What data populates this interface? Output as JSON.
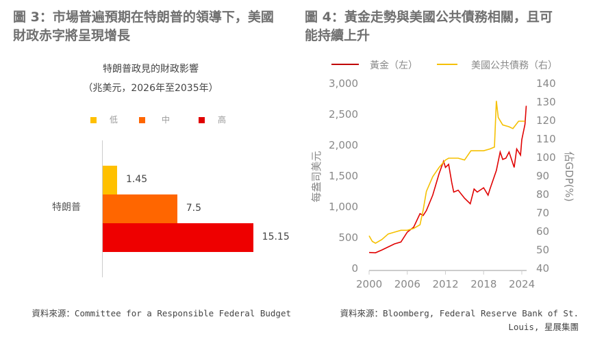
{
  "left": {
    "title_line1": "圖 3：市場普遍預期在特朗普的領導下，美國",
    "title_line2": "財政赤字將呈現增長",
    "source": "資料來源：Committee for a Responsible Federal Budget"
  },
  "right": {
    "title_line1": "圖 4：黃金走勢與美國公共債務相關，且可",
    "title_line2": "能持續上升",
    "source_line1": "資料來源：Bloomberg, Federal Reserve Bank of St.",
    "source_line2": "Louis, 星展集團"
  },
  "chart_data": [
    {
      "type": "bar",
      "orientation": "horizontal",
      "title": "特朗普政見的財政影響",
      "subtitle": "（兆美元，2026年至2035年）",
      "categories": [
        "特朗普"
      ],
      "series": [
        {
          "name": "低",
          "color": "#FFC000",
          "values": [
            1.45
          ],
          "label": "1.45"
        },
        {
          "name": "中",
          "color": "#FF6600",
          "values": [
            7.5
          ],
          "label": "7.5"
        },
        {
          "name": "高",
          "color": "#EE0000",
          "values": [
            15.15
          ],
          "label": "15.15"
        }
      ]
    },
    {
      "type": "line",
      "ylabel": "每盎司美元",
      "y2label": "佔GDP(%)",
      "xlim": [
        2000,
        2025
      ],
      "ylim": [
        0,
        3000
      ],
      "y2lim": [
        40,
        140
      ],
      "xticks": [
        "2000",
        "2006",
        "2012",
        "2018",
        "2024"
      ],
      "yticks": [
        "0",
        "500",
        "1,000",
        "1,500",
        "2,000",
        "2,500",
        "3,000"
      ],
      "y2ticks": [
        "40",
        "50",
        "60",
        "70",
        "80",
        "90",
        "100",
        "110",
        "120",
        "130",
        "140"
      ],
      "series": [
        {
          "name": "黃金（左）",
          "axis": "left",
          "color": "#E00000",
          "x": [
            2000,
            2001,
            2002,
            2003,
            2004,
            2005,
            2006,
            2007,
            2008,
            2008.5,
            2009,
            2010,
            2011,
            2011.7,
            2012,
            2012.5,
            2013,
            2013.3,
            2014,
            2015,
            2015.9,
            2016.5,
            2017,
            2018,
            2018.7,
            2019,
            2019.5,
            2020,
            2020.6,
            2021,
            2021.5,
            2022,
            2022.8,
            2023.2,
            2023.8,
            2024,
            2024.5,
            2024.7
          ],
          "y": [
            270,
            265,
            310,
            360,
            410,
            440,
            600,
            680,
            900,
            870,
            950,
            1200,
            1550,
            1750,
            1650,
            1700,
            1400,
            1250,
            1280,
            1150,
            1060,
            1300,
            1250,
            1320,
            1200,
            1300,
            1450,
            1600,
            1900,
            1780,
            1800,
            1900,
            1650,
            1950,
            1850,
            2100,
            2350,
            2650
          ]
        },
        {
          "name": "美國公共債務（右）",
          "axis": "right",
          "color": "#F5C000",
          "x": [
            2000,
            2000.5,
            2001,
            2002,
            2003,
            2004,
            2005,
            2006,
            2007,
            2008,
            2008.5,
            2009,
            2010,
            2011,
            2012,
            2012.5,
            2013,
            2014,
            2015,
            2016,
            2017,
            2018,
            2019,
            2019.7,
            2020,
            2020.3,
            2021,
            2022,
            2022.6,
            2023.5,
            2024,
            2024.5
          ],
          "y": [
            58,
            55,
            54,
            56,
            59,
            60,
            61,
            61,
            62,
            64,
            72,
            82,
            90,
            95,
            99,
            100,
            100,
            100,
            99,
            104,
            104,
            104,
            105,
            106,
            131,
            122,
            118,
            117,
            116,
            120,
            120,
            120
          ]
        }
      ]
    }
  ]
}
